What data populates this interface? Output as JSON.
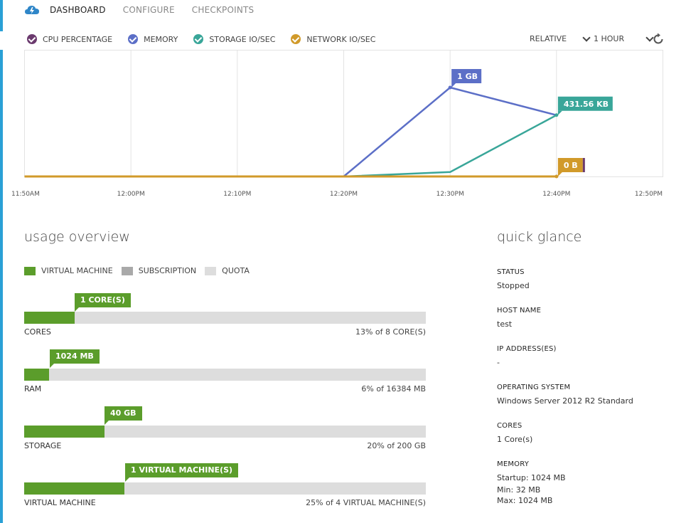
{
  "nav": {
    "tabs": [
      {
        "label": "DASHBOARD"
      },
      {
        "label": "CONFIGURE"
      },
      {
        "label": "CHECKPOINTS"
      }
    ]
  },
  "metrics_legend": {
    "items": [
      {
        "label": "CPU PERCENTAGE",
        "color": "#6b3a6e"
      },
      {
        "label": "MEMORY",
        "color": "#5c6fc7"
      },
      {
        "label": "STORAGE IO/SEC",
        "color": "#39a699"
      },
      {
        "label": "NETWORK IO/SEC",
        "color": "#d19a2a"
      }
    ]
  },
  "range": {
    "mode": "RELATIVE",
    "period": "1 HOUR"
  },
  "chart_data": {
    "type": "line",
    "x": [
      "11:50AM",
      "12:00PM",
      "12:10PM",
      "12:20PM",
      "12:30PM",
      "12:40PM",
      "12:50PM"
    ],
    "series": [
      {
        "name": "MEMORY",
        "color": "#5c6fc7",
        "values": [
          0,
          0,
          0,
          0,
          1.0,
          0.69,
          null
        ]
      },
      {
        "name": "STORAGE IO/SEC",
        "color": "#39a699",
        "values": [
          0,
          0,
          0,
          0,
          0.05,
          0.69,
          null
        ]
      },
      {
        "name": "NETWORK IO/SEC",
        "color": "#d19a2a",
        "values": [
          0,
          0,
          0,
          0,
          0,
          0,
          null
        ]
      }
    ],
    "data_labels": [
      {
        "series": "MEMORY",
        "x": "12:30PM",
        "text": "1 GB",
        "color": "#5c6fc7"
      },
      {
        "series": "STORAGE IO/SEC",
        "x": "12:40PM",
        "text": "431.56 KB",
        "color": "#39a699"
      },
      {
        "series": "NETWORK IO/SEC",
        "x": "12:40PM",
        "text": "0 B",
        "color": "#d19a2a"
      }
    ],
    "ylim": [
      0,
      1
    ],
    "grid": true
  },
  "usage": {
    "title": "usage overview",
    "legend": [
      {
        "label": "VIRTUAL MACHINE",
        "color": "#5b9d2b"
      },
      {
        "label": "SUBSCRIPTION",
        "color": "#a9a9a9"
      },
      {
        "label": "QUOTA",
        "color": "#dddddd"
      }
    ],
    "rows": [
      {
        "label": "CORES",
        "callout": "1 CORE(S)",
        "summary": "13% of 8 CORE(S)",
        "fraction": 0.125
      },
      {
        "label": "RAM",
        "callout": "1024 MB",
        "summary": "6% of 16384 MB",
        "fraction": 0.0625
      },
      {
        "label": "STORAGE",
        "callout": "40 GB",
        "summary": "20% of 200 GB",
        "fraction": 0.2
      },
      {
        "label": "VIRTUAL MACHINE",
        "callout": "1 VIRTUAL MACHINE(S)",
        "summary": "25% of 4 VIRTUAL MACHINE(S)",
        "fraction": 0.25
      }
    ]
  },
  "quick_glance": {
    "title": "quick glance",
    "status_label": "STATUS",
    "status_value": "Stopped",
    "host_label": "HOST NAME",
    "host_value": "test",
    "ip_label": "IP ADDRESS(ES)",
    "ip_value": "-",
    "os_label": "OPERATING SYSTEM",
    "os_value": "Windows Server 2012 R2 Standard",
    "cores_label": "CORES",
    "cores_value": "1 Core(s)",
    "memory_label": "MEMORY",
    "memory_startup": "Startup: 1024 MB",
    "memory_min": "Min: 32 MB",
    "memory_max": "Max: 1024 MB"
  }
}
